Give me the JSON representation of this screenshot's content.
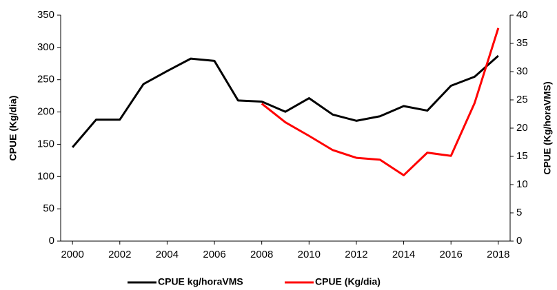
{
  "chart_data": {
    "type": "line",
    "x": [
      2000,
      2001,
      2002,
      2003,
      2004,
      2005,
      2006,
      2007,
      2008,
      2009,
      2010,
      2011,
      2012,
      2013,
      2014,
      2015,
      2016,
      2017,
      2018
    ],
    "series": [
      {
        "name": "CPUE kg/horaVMS",
        "color": "#000000",
        "axis": "y2",
        "values": [
          16.6,
          21.5,
          21.5,
          27.8,
          30.1,
          32.3,
          31.9,
          24.9,
          24.7,
          22.9,
          25.3,
          22.4,
          21.3,
          22.1,
          23.9,
          23.1,
          27.5,
          29.1,
          32.8
        ]
      },
      {
        "name": "CPUE (Kg/dia)",
        "color": "#ff0000",
        "values": [
          null,
          null,
          null,
          null,
          null,
          null,
          null,
          null,
          213,
          184,
          163,
          141,
          129,
          126,
          102,
          137,
          132,
          214,
          330
        ]
      }
    ],
    "ylabel": "CPUE (Kg/dia)",
    "y2label": "CPUE (Kg/horaVMS)",
    "xlim": [
      1999.5,
      2018.5
    ],
    "xticks": [
      2000,
      2002,
      2004,
      2006,
      2008,
      2010,
      2012,
      2014,
      2016,
      2018
    ],
    "ylim": [
      0,
      350
    ],
    "yticks": [
      0,
      50,
      100,
      150,
      200,
      250,
      300,
      350
    ],
    "y2lim": [
      0,
      40
    ],
    "y2ticks": [
      0,
      5,
      10,
      15,
      20,
      25,
      30,
      35,
      40
    ],
    "legend": "bottom"
  }
}
